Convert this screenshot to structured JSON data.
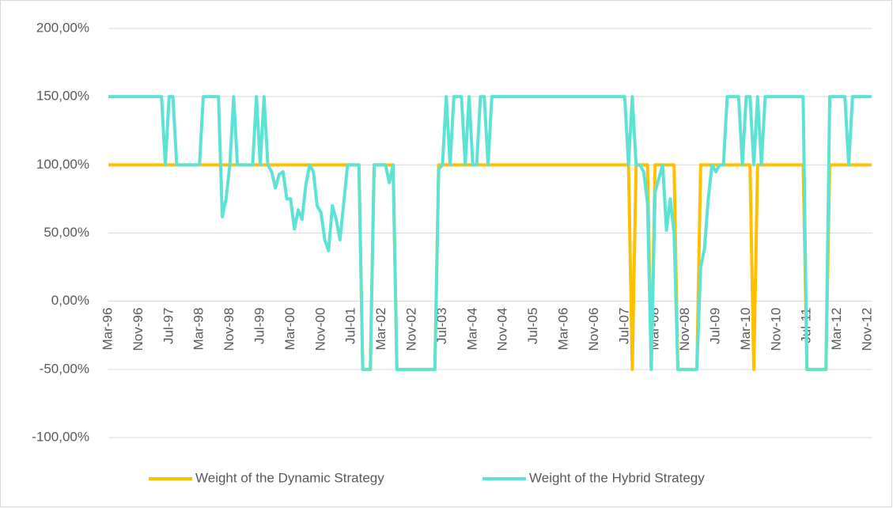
{
  "chart_data": {
    "type": "line",
    "categories": [
      "Mar-96",
      null,
      null,
      null,
      null,
      null,
      null,
      null,
      "Nov-96",
      null,
      null,
      null,
      null,
      null,
      null,
      null,
      "Jul-97",
      null,
      null,
      null,
      null,
      null,
      null,
      null,
      "Mar-98",
      null,
      null,
      null,
      null,
      null,
      null,
      null,
      "Nov-98",
      null,
      null,
      null,
      null,
      null,
      null,
      null,
      "Jul-99",
      null,
      null,
      null,
      null,
      null,
      null,
      null,
      "Mar-00",
      null,
      null,
      null,
      null,
      null,
      null,
      null,
      "Nov-00",
      null,
      null,
      null,
      null,
      null,
      null,
      null,
      "Jul-01",
      null,
      null,
      null,
      null,
      null,
      null,
      null,
      "Mar-02",
      null,
      null,
      null,
      null,
      null,
      null,
      null,
      "Nov-02",
      null,
      null,
      null,
      null,
      null,
      null,
      null,
      "Jul-03",
      null,
      null,
      null,
      null,
      null,
      null,
      null,
      "Mar-04",
      null,
      null,
      null,
      null,
      null,
      null,
      null,
      "Nov-04",
      null,
      null,
      null,
      null,
      null,
      null,
      null,
      "Jul-05",
      null,
      null,
      null,
      null,
      null,
      null,
      null,
      "Mar-06",
      null,
      null,
      null,
      null,
      null,
      null,
      null,
      "Nov-06",
      null,
      null,
      null,
      null,
      null,
      null,
      null,
      "Jul-07",
      null,
      null,
      null,
      null,
      null,
      null,
      null,
      "Mar-08",
      null,
      null,
      null,
      null,
      null,
      null,
      null,
      "Nov-08",
      null,
      null,
      null,
      null,
      null,
      null,
      null,
      "Jul-09",
      null,
      null,
      null,
      null,
      null,
      null,
      null,
      "Mar-10",
      null,
      null,
      null,
      null,
      null,
      null,
      null,
      "Nov-10",
      null,
      null,
      null,
      null,
      null,
      null,
      null,
      "Jul-11",
      null,
      null,
      null,
      null,
      null,
      null,
      null,
      "Mar-12",
      null,
      null,
      null,
      null,
      null,
      null,
      null,
      "Nov-12",
      null
    ],
    "series": [
      {
        "name": "Weight of the Dynamic Strategy",
        "color": "#ffc000",
        "values": [
          100,
          100,
          100,
          100,
          100,
          100,
          100,
          100,
          100,
          100,
          100,
          100,
          100,
          100,
          100,
          100,
          100,
          100,
          100,
          100,
          100,
          100,
          100,
          100,
          100,
          100,
          100,
          100,
          100,
          100,
          100,
          100,
          100,
          100,
          100,
          100,
          100,
          100,
          100,
          100,
          100,
          100,
          100,
          100,
          100,
          100,
          100,
          100,
          100,
          100,
          100,
          100,
          100,
          100,
          100,
          100,
          100,
          100,
          100,
          100,
          100,
          100,
          100,
          100,
          100,
          100,
          100,
          -50,
          -50,
          -50,
          100,
          100,
          100,
          100,
          100,
          100,
          -50,
          -50,
          -50,
          -50,
          -50,
          -50,
          -50,
          -50,
          -50,
          -50,
          -50,
          100,
          100,
          100,
          100,
          100,
          100,
          100,
          100,
          100,
          100,
          100,
          100,
          100,
          100,
          100,
          100,
          100,
          100,
          100,
          100,
          100,
          100,
          100,
          100,
          100,
          100,
          100,
          100,
          100,
          100,
          100,
          100,
          100,
          100,
          100,
          100,
          100,
          100,
          100,
          100,
          100,
          100,
          100,
          100,
          100,
          100,
          100,
          100,
          100,
          100,
          100,
          -50,
          100,
          100,
          100,
          100,
          -50,
          100,
          100,
          100,
          100,
          100,
          100,
          -50,
          -50,
          -50,
          -50,
          -50,
          -50,
          100,
          100,
          100,
          100,
          100,
          100,
          100,
          100,
          100,
          100,
          100,
          100,
          100,
          100,
          -50,
          100,
          100,
          100,
          100,
          100,
          100,
          100,
          100,
          100,
          100,
          100,
          100,
          100,
          -50,
          -50,
          -50,
          -50,
          -50,
          -50,
          100,
          100,
          100,
          100,
          100,
          100,
          100,
          100,
          100,
          100,
          100,
          100
        ]
      },
      {
        "name": "Weight of the Hybrid Strategy",
        "color": "#5de3d6",
        "values": [
          150,
          150,
          150,
          150,
          150,
          150,
          150,
          150,
          150,
          150,
          150,
          150,
          150,
          150,
          150,
          100,
          150,
          150,
          100,
          100,
          100,
          100,
          100,
          100,
          100,
          150,
          150,
          150,
          150,
          150,
          62,
          75,
          100,
          150,
          100,
          100,
          100,
          100,
          100,
          150,
          100,
          150,
          100,
          95,
          83,
          93,
          95,
          75,
          75,
          53,
          67,
          60,
          85,
          100,
          95,
          70,
          65,
          45,
          37,
          70,
          60,
          45,
          72,
          100,
          100,
          100,
          100,
          -50,
          -50,
          -50,
          100,
          100,
          100,
          100,
          87,
          100,
          -50,
          -50,
          -50,
          -50,
          -50,
          -50,
          -50,
          -50,
          -50,
          -50,
          -50,
          97,
          100,
          150,
          100,
          150,
          150,
          150,
          100,
          150,
          100,
          100,
          150,
          150,
          100,
          150,
          150,
          150,
          150,
          150,
          150,
          150,
          150,
          150,
          150,
          150,
          150,
          150,
          150,
          150,
          150,
          150,
          150,
          150,
          150,
          150,
          150,
          150,
          150,
          150,
          150,
          150,
          150,
          150,
          150,
          150,
          150,
          150,
          150,
          150,
          150,
          100,
          150,
          100,
          100,
          95,
          72,
          -50,
          80,
          90,
          100,
          52,
          75,
          50,
          -50,
          -50,
          -50,
          -50,
          -50,
          -50,
          25,
          38,
          75,
          100,
          95,
          100,
          100,
          150,
          150,
          150,
          150,
          100,
          150,
          150,
          100,
          150,
          100,
          150,
          150,
          150,
          150,
          150,
          150,
          150,
          150,
          150,
          150,
          150,
          -50,
          -50,
          -50,
          -50,
          -50,
          -50,
          150,
          150,
          150,
          150,
          150,
          100,
          150,
          150,
          150,
          150,
          150,
          150
        ]
      }
    ],
    "ylim": [
      -100,
      200
    ],
    "yticks": [
      {
        "value": -100,
        "label": "-100,00%"
      },
      {
        "value": -50,
        "label": "-50,00%"
      },
      {
        "value": 0,
        "label": "0,00%"
      },
      {
        "value": 50,
        "label": "50,00%"
      },
      {
        "value": 100,
        "label": "100,00%"
      },
      {
        "value": 150,
        "label": "150,00%"
      },
      {
        "value": 200,
        "label": "200,00%"
      }
    ],
    "grid": true,
    "legend": "bottom"
  }
}
